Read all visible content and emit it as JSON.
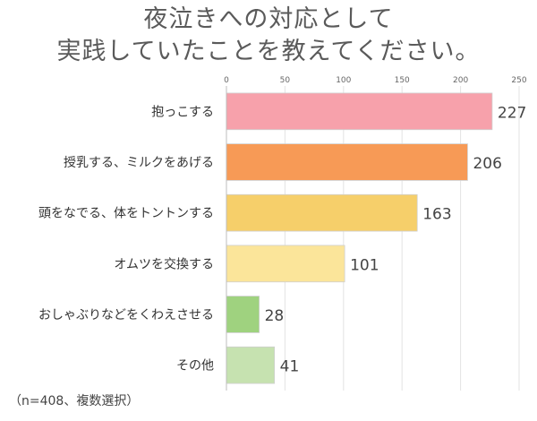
{
  "title_lines": [
    "夜泣きへの対応として",
    "実践していたことを教えてください。"
  ],
  "note": "（n=408、複数選択）",
  "chart_data": {
    "type": "bar",
    "orientation": "horizontal",
    "title": "夜泣きへの対応として実践していたことを教えてください。",
    "categories": [
      "抱っこする",
      "授乳する、ミルクをあげる",
      "頭をなでる、体をトントンする",
      "オムツを交換する",
      "おしゃぶりなどをくわえさせる",
      "その他"
    ],
    "values": [
      227,
      206,
      163,
      101,
      28,
      41
    ],
    "colors": [
      "#f7a1ab",
      "#f79a56",
      "#f6cf6a",
      "#fbe59a",
      "#9fd27f",
      "#c6e2b0"
    ],
    "xlim": [
      0,
      250
    ],
    "xticks": [
      0,
      50,
      100,
      150,
      200,
      250
    ],
    "grid": true,
    "legend": "none"
  }
}
